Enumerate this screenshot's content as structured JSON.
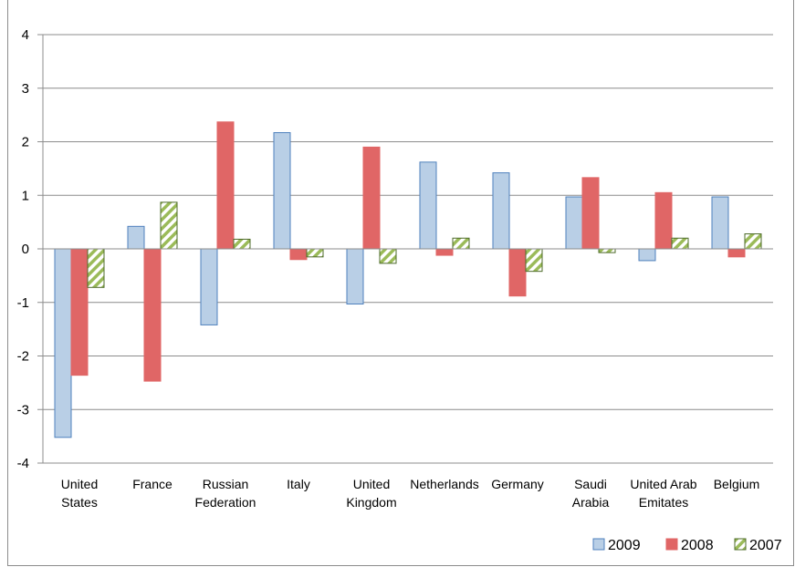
{
  "chart_data": {
    "type": "bar",
    "categories": [
      [
        "United",
        "States"
      ],
      [
        "France"
      ],
      [
        "Russian",
        "Federation"
      ],
      [
        "Italy"
      ],
      [
        "United",
        "Kingdom"
      ],
      [
        "Netherlands"
      ],
      [
        "Germany"
      ],
      [
        "Saudi",
        "Arabia"
      ],
      [
        "United Arab",
        "Emitates"
      ],
      [
        "Belgium"
      ]
    ],
    "series": [
      {
        "name": "2009",
        "values": [
          -3.52,
          0.42,
          -1.42,
          2.17,
          -1.03,
          1.62,
          1.42,
          0.97,
          -0.22,
          0.97
        ],
        "fill": "#b9cfe6",
        "stroke": "#4f81bd",
        "pattern": "solid"
      },
      {
        "name": "2008",
        "values": [
          -2.36,
          -2.47,
          2.37,
          -0.2,
          1.9,
          -0.12,
          -0.88,
          1.33,
          1.05,
          -0.15
        ],
        "fill": "#e06666",
        "stroke": "#e06666",
        "pattern": "solid"
      },
      {
        "name": "2007",
        "values": [
          -0.72,
          0.87,
          0.18,
          -0.15,
          -0.27,
          0.2,
          -0.42,
          -0.07,
          0.2,
          0.28
        ],
        "fill": "#9bbb59",
        "stroke": "#4e6b2a",
        "pattern": "diagonal-hatch"
      }
    ],
    "ylim": [
      -4,
      4
    ],
    "yticks": [
      "4",
      "3",
      "2",
      "1",
      "0",
      "-1",
      "-2",
      "-3",
      "-4"
    ],
    "grid": true,
    "legend_position": "bottom-right",
    "title": "",
    "xlabel": "",
    "ylabel": ""
  }
}
